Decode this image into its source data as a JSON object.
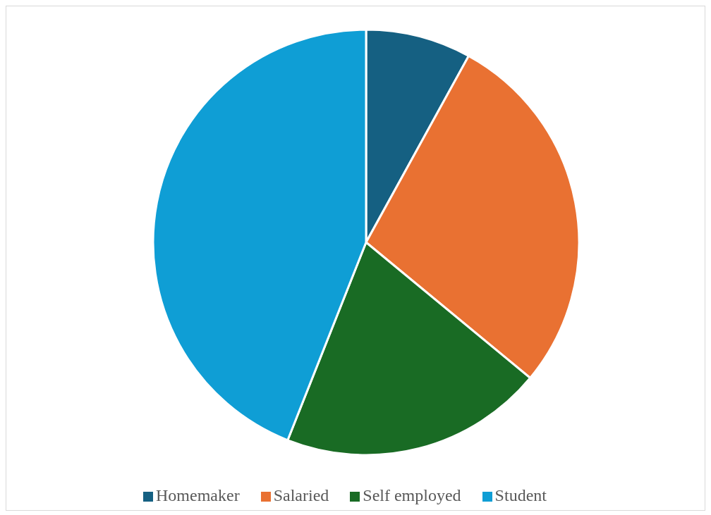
{
  "chart_data": {
    "type": "pie",
    "categories": [
      "Homemaker",
      "Salaried",
      "Self employed",
      "Student"
    ],
    "values": [
      8,
      28,
      20,
      44
    ],
    "colors": [
      "#156082",
      "#e97132",
      "#196b24",
      "#0f9ed5"
    ],
    "legend": "bottom"
  }
}
